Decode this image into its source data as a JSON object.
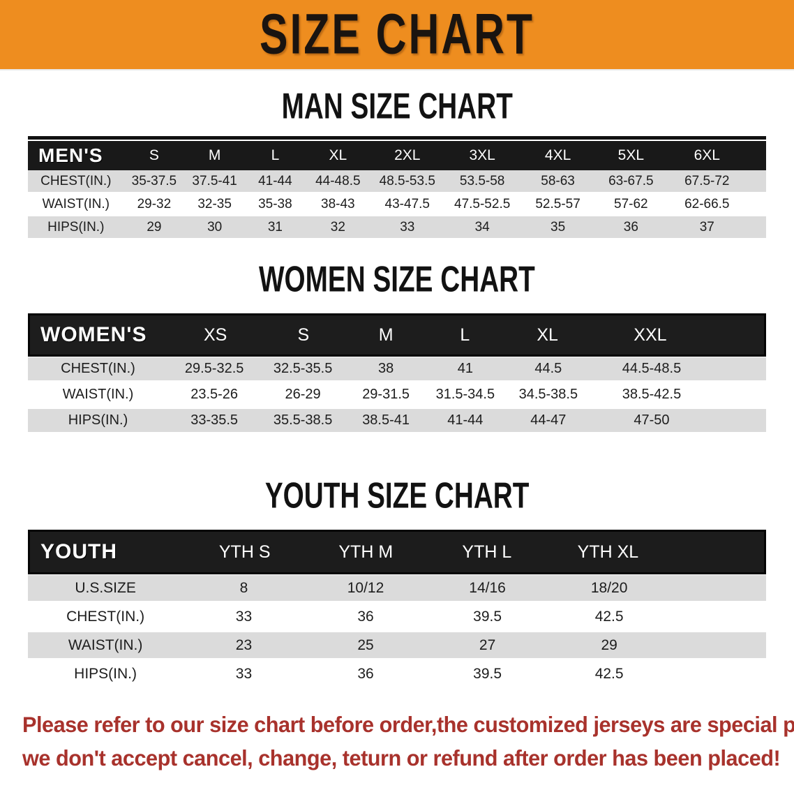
{
  "banner": {
    "title": "SIZE CHART",
    "bg_color": "#E8861E",
    "text_color": "#1A1410"
  },
  "sections": {
    "men": {
      "title": "MAN SIZE CHART",
      "table": {
        "header_label": "MEN'S",
        "columns": [
          "S",
          "M",
          "L",
          "XL",
          "2XL",
          "3XL",
          "4XL",
          "5XL",
          "6XL"
        ],
        "rows": [
          {
            "label": "CHEST(IN.)",
            "values": [
              "35-37.5",
              "37.5-41",
              "41-44",
              "44-48.5",
              "48.5-53.5",
              "53.5-58",
              "58-63",
              "63-67.5",
              "67.5-72"
            ]
          },
          {
            "label": "WAIST(IN.)",
            "values": [
              "29-32",
              "32-35",
              "35-38",
              "38-43",
              "43-47.5",
              "47.5-52.5",
              "52.5-57",
              "57-62",
              "62-66.5"
            ]
          },
          {
            "label": "HIPS(IN.)",
            "values": [
              "29",
              "30",
              "31",
              "32",
              "33",
              "34",
              "35",
              "36",
              "37"
            ]
          }
        ]
      }
    },
    "women": {
      "title": "WOMEN SIZE CHART",
      "table": {
        "header_label": "WOMEN'S",
        "columns": [
          "XS",
          "S",
          "M",
          "L",
          "XL",
          "XXL"
        ],
        "rows": [
          {
            "label": "CHEST(IN.)",
            "values": [
              "29.5-32.5",
              "32.5-35.5",
              "38",
              "41",
              "44.5",
              "44.5-48.5"
            ]
          },
          {
            "label": "WAIST(IN.)",
            "values": [
              "23.5-26",
              "26-29",
              "29-31.5",
              "31.5-34.5",
              "34.5-38.5",
              "38.5-42.5"
            ]
          },
          {
            "label": "HIPS(IN.)",
            "values": [
              "33-35.5",
              "35.5-38.5",
              "38.5-41",
              "41-44",
              "44-47",
              "47-50"
            ]
          }
        ]
      }
    },
    "youth": {
      "title": "YOUTH SIZE CHART",
      "table": {
        "header_label": "YOUTH",
        "columns": [
          "YTH S",
          "YTH M",
          "YTH L",
          "YTH XL"
        ],
        "rows": [
          {
            "label": "U.S.SIZE",
            "values": [
              "8",
              "10/12",
              "14/16",
              "18/20"
            ]
          },
          {
            "label": "CHEST(IN.)",
            "values": [
              "33",
              "36",
              "39.5",
              "42.5"
            ]
          },
          {
            "label": "WAIST(IN.)",
            "values": [
              "23",
              "25",
              "27",
              "29"
            ]
          },
          {
            "label": "HIPS(IN.)",
            "values": [
              "33",
              "36",
              "39.5",
              "42.5"
            ]
          }
        ]
      }
    }
  },
  "disclaimer": {
    "lines": [
      "Please refer to our size chart before order,the customized jerseys are special products,",
      "we don't accept cancel, change, teturn or refund after order has been placed!"
    ],
    "color": "#A8322C"
  }
}
